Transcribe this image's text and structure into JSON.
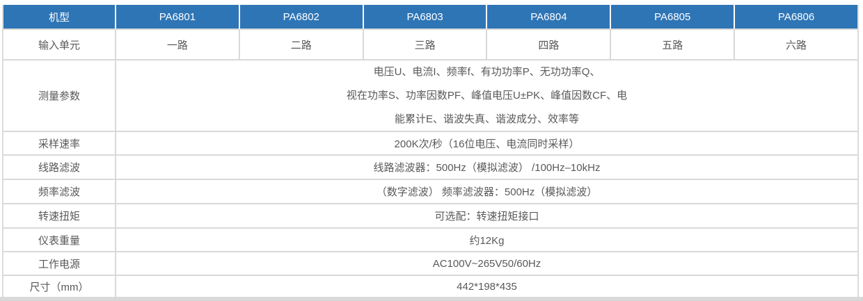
{
  "colors": {
    "header_bg": "#2e75b6",
    "header_text": "#ffffff",
    "body_text": "#595959",
    "border": "#d9d9d9",
    "bottom_bar": "#d9d9d9"
  },
  "table": {
    "header": {
      "label": "机型",
      "models": [
        "PA6801",
        "PA6802",
        "PA6803",
        "PA6804",
        "PA6805",
        "PA6806"
      ]
    },
    "input_row": {
      "label": "输入单元",
      "values": [
        "一路",
        "二路",
        "三路",
        "四路",
        "五路",
        "六路"
      ]
    },
    "measure_row": {
      "label": "测量参数",
      "lines": [
        "电压U、电流I、频率f、有功功率P、无功功率Q、",
        "视在功率S、功率因数PF、峰值电压U±PK、峰值因数CF、电",
        "能累计E、谐波失真、谐波成分、效率等"
      ]
    },
    "spec_rows": [
      {
        "label": "采样速率",
        "value": "200K次/秒（16位电压、电流同时采样）"
      },
      {
        "label": "线路滤波",
        "value": "线路滤波器：500Hz（模拟滤波） /100Hz–10kHz"
      },
      {
        "label": "频率滤波",
        "value": "（数字滤波） 频率滤波器：500Hz（模拟滤波）"
      },
      {
        "label": "转速扭矩",
        "value": "可选配：转速扭矩接口"
      },
      {
        "label": "仪表重量",
        "value": "约12Kg"
      },
      {
        "label": "工作电源",
        "value": "AC100V~265V50/60Hz"
      },
      {
        "label": "尺寸（mm）",
        "value": "442*198*435"
      }
    ]
  }
}
